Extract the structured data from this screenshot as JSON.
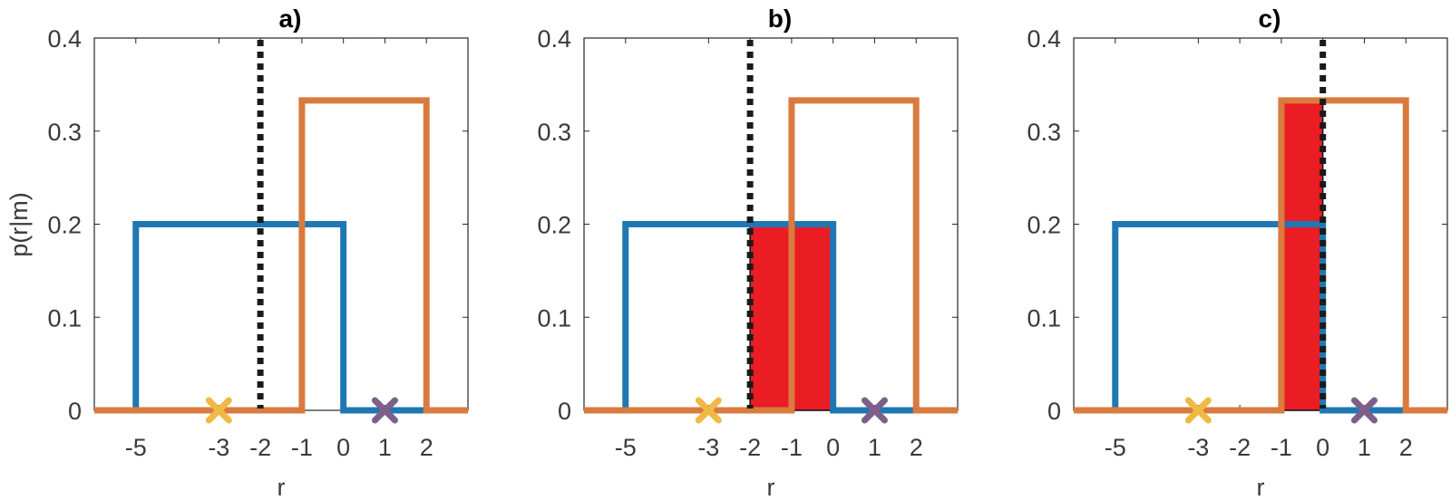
{
  "ylabel": "p(r|m)",
  "colors": {
    "blue": "#1f77b4",
    "orange": "#d97b3f",
    "red_fill": "#ea1c24",
    "yellow_marker": "#f0b944",
    "purple_marker": "#7e5f8a",
    "threshold_line": "#1a1a1a",
    "axes": "#262626"
  },
  "chart_data": [
    {
      "type": "line",
      "title": "a)",
      "xlabel": "r",
      "ylabel": "p(r|m)",
      "xlim": [
        -6,
        3
      ],
      "ylim": [
        0,
        0.4
      ],
      "xticks": [
        -5,
        -3,
        -2,
        -1,
        0,
        1,
        2
      ],
      "yticks": [
        0,
        0.1,
        0.2,
        0.3,
        0.4
      ],
      "grid": false,
      "series": [
        {
          "color": "blue",
          "x": [
            -6,
            -5,
            -5,
            0,
            0,
            3
          ],
          "y": [
            0,
            0,
            0.2,
            0.2,
            0,
            0
          ]
        },
        {
          "color": "orange",
          "x": [
            -6,
            -1,
            -1,
            2,
            2,
            3
          ],
          "y": [
            0,
            0,
            0.333,
            0.333,
            0,
            0
          ]
        }
      ],
      "markers": [
        {
          "x": -3,
          "y": 0,
          "symbol": "x",
          "color": "yellow_marker"
        },
        {
          "x": 1,
          "y": 0,
          "symbol": "x",
          "color": "purple_marker"
        }
      ],
      "threshold": -2,
      "shaded": null
    },
    {
      "type": "line",
      "title": "b)",
      "xlabel": "r",
      "xlim": [
        -6,
        3
      ],
      "ylim": [
        0,
        0.4
      ],
      "xticks": [
        -5,
        -3,
        -2,
        -1,
        0,
        1,
        2
      ],
      "yticks": [
        0,
        0.1,
        0.2,
        0.3,
        0.4
      ],
      "grid": false,
      "series": [
        {
          "color": "blue",
          "x": [
            -6,
            -5,
            -5,
            0,
            0,
            3
          ],
          "y": [
            0,
            0,
            0.2,
            0.2,
            0,
            0
          ]
        },
        {
          "color": "orange",
          "x": [
            -6,
            -1,
            -1,
            2,
            2,
            3
          ],
          "y": [
            0,
            0,
            0.333,
            0.333,
            0,
            0
          ]
        }
      ],
      "markers": [
        {
          "x": -3,
          "y": 0,
          "symbol": "x",
          "color": "yellow_marker"
        },
        {
          "x": 1,
          "y": 0,
          "symbol": "x",
          "color": "purple_marker"
        }
      ],
      "threshold": -2,
      "shaded": {
        "x0": -2,
        "x1": 0,
        "height": 0.2
      }
    },
    {
      "type": "line",
      "title": "c)",
      "xlabel": "r",
      "xlim": [
        -6,
        3
      ],
      "ylim": [
        0,
        0.4
      ],
      "xticks": [
        -5,
        -3,
        -2,
        -1,
        0,
        1,
        2
      ],
      "yticks": [
        0,
        0.1,
        0.2,
        0.3,
        0.4
      ],
      "grid": false,
      "series": [
        {
          "color": "blue",
          "x": [
            -6,
            -5,
            -5,
            0,
            0,
            3
          ],
          "y": [
            0,
            0,
            0.2,
            0.2,
            0,
            0
          ]
        },
        {
          "color": "orange",
          "x": [
            -6,
            -1,
            -1,
            2,
            2,
            3
          ],
          "y": [
            0,
            0,
            0.333,
            0.333,
            0,
            0
          ]
        }
      ],
      "markers": [
        {
          "x": -3,
          "y": 0,
          "symbol": "x",
          "color": "yellow_marker"
        },
        {
          "x": 1,
          "y": 0,
          "symbol": "x",
          "color": "purple_marker"
        }
      ],
      "threshold": 0,
      "shaded": {
        "x0": -1,
        "x1": 0,
        "height": 0.333
      }
    }
  ]
}
